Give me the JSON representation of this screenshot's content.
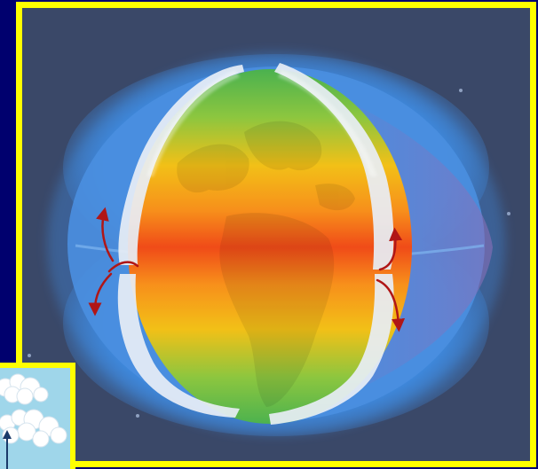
{
  "figure": {
    "subject": "globe-atmospheric-circulation",
    "frame_color": "#ffff00",
    "page_background": "#00006e",
    "panel_background": "#3a4868",
    "band_colors": [
      "#3fae52",
      "#a6cd32",
      "#f2c017",
      "#f7901b",
      "#f04b18",
      "#f7901b",
      "#f2c017",
      "#a6cd32",
      "#3fae52"
    ],
    "cell_color": "#e8eef6",
    "arrow_color": "#b01616",
    "atmosphere_color": "#3f8fe8"
  },
  "inset": {
    "subject": "clouds-thumbnail",
    "sky_color": "#9fd6ea",
    "cloud_color": "#ffffff"
  }
}
